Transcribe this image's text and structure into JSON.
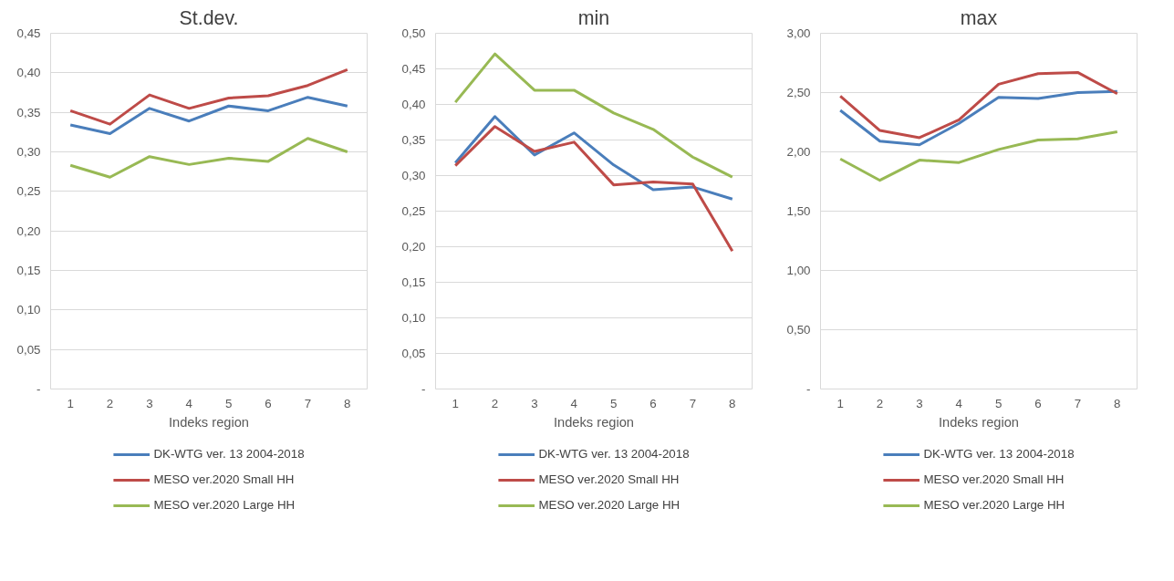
{
  "chart_data": [
    {
      "type": "line",
      "title": "St.dev.",
      "xlabel": "Indeks region",
      "categories": [
        "1",
        "2",
        "3",
        "4",
        "5",
        "6",
        "7",
        "8"
      ],
      "ylim": [
        0,
        0.45
      ],
      "yticks": [
        {
          "value": 0,
          "label": "-"
        },
        {
          "value": 0.05,
          "label": "0,05"
        },
        {
          "value": 0.1,
          "label": "0,10"
        },
        {
          "value": 0.15,
          "label": "0,15"
        },
        {
          "value": 0.2,
          "label": "0,20"
        },
        {
          "value": 0.25,
          "label": "0,25"
        },
        {
          "value": 0.3,
          "label": "0,30"
        },
        {
          "value": 0.35,
          "label": "0,35"
        },
        {
          "value": 0.4,
          "label": "0,40"
        },
        {
          "value": 0.45,
          "label": "0,45"
        }
      ],
      "grid": "y",
      "legend": "bottom",
      "series": [
        {
          "name": "DK-WTG ver. 13 2004-2018",
          "color": "#4a7ebb",
          "values": [
            0.334,
            0.323,
            0.355,
            0.339,
            0.358,
            0.352,
            0.369,
            0.358
          ]
        },
        {
          "name": "MESO ver.2020 Small HH",
          "color": "#be4b48",
          "values": [
            0.352,
            0.335,
            0.372,
            0.355,
            0.368,
            0.371,
            0.384,
            0.404
          ]
        },
        {
          "name": "MESO ver.2020 Large HH",
          "color": "#98b954",
          "values": [
            0.283,
            0.268,
            0.294,
            0.284,
            0.292,
            0.288,
            0.317,
            0.3
          ]
        }
      ]
    },
    {
      "type": "line",
      "title": "min",
      "xlabel": "Indeks region",
      "categories": [
        "1",
        "2",
        "3",
        "4",
        "5",
        "6",
        "7",
        "8"
      ],
      "ylim": [
        0,
        0.5
      ],
      "yticks": [
        {
          "value": 0,
          "label": "-"
        },
        {
          "value": 0.05,
          "label": "0,05"
        },
        {
          "value": 0.1,
          "label": "0,10"
        },
        {
          "value": 0.15,
          "label": "0,15"
        },
        {
          "value": 0.2,
          "label": "0,20"
        },
        {
          "value": 0.25,
          "label": "0,25"
        },
        {
          "value": 0.3,
          "label": "0,30"
        },
        {
          "value": 0.35,
          "label": "0,35"
        },
        {
          "value": 0.4,
          "label": "0,40"
        },
        {
          "value": 0.45,
          "label": "0,45"
        },
        {
          "value": 0.5,
          "label": "0,50"
        }
      ],
      "grid": "y",
      "legend": "bottom",
      "series": [
        {
          "name": "DK-WTG ver. 13 2004-2018",
          "color": "#4a7ebb",
          "values": [
            0.318,
            0.383,
            0.329,
            0.36,
            0.315,
            0.28,
            0.284,
            0.267
          ]
        },
        {
          "name": "MESO ver.2020 Small HH",
          "color": "#be4b48",
          "values": [
            0.314,
            0.369,
            0.334,
            0.347,
            0.287,
            0.291,
            0.288,
            0.194
          ]
        },
        {
          "name": "MESO ver.2020 Large HH",
          "color": "#98b954",
          "values": [
            0.403,
            0.471,
            0.42,
            0.42,
            0.388,
            0.365,
            0.326,
            0.298
          ]
        }
      ]
    },
    {
      "type": "line",
      "title": "max",
      "xlabel": "Indeks region",
      "categories": [
        "1",
        "2",
        "3",
        "4",
        "5",
        "6",
        "7",
        "8"
      ],
      "ylim": [
        0,
        3
      ],
      "yticks": [
        {
          "value": 0,
          "label": "-"
        },
        {
          "value": 0.5,
          "label": "0,50"
        },
        {
          "value": 1,
          "label": "1,00"
        },
        {
          "value": 1.5,
          "label": "1,50"
        },
        {
          "value": 2,
          "label": "2,00"
        },
        {
          "value": 2.5,
          "label": "2,50"
        },
        {
          "value": 3,
          "label": "3,00"
        }
      ],
      "grid": "y",
      "legend": "bottom",
      "series": [
        {
          "name": "DK-WTG ver. 13 2004-2018",
          "color": "#4a7ebb",
          "values": [
            2.35,
            2.09,
            2.06,
            2.24,
            2.46,
            2.45,
            2.5,
            2.51
          ]
        },
        {
          "name": "MESO ver.2020 Small HH",
          "color": "#be4b48",
          "values": [
            2.47,
            2.18,
            2.12,
            2.27,
            2.57,
            2.66,
            2.67,
            2.49
          ]
        },
        {
          "name": "MESO ver.2020 Large HH",
          "color": "#98b954",
          "values": [
            1.94,
            1.76,
            1.93,
            1.91,
            2.02,
            2.1,
            2.11,
            2.17
          ]
        }
      ]
    }
  ]
}
